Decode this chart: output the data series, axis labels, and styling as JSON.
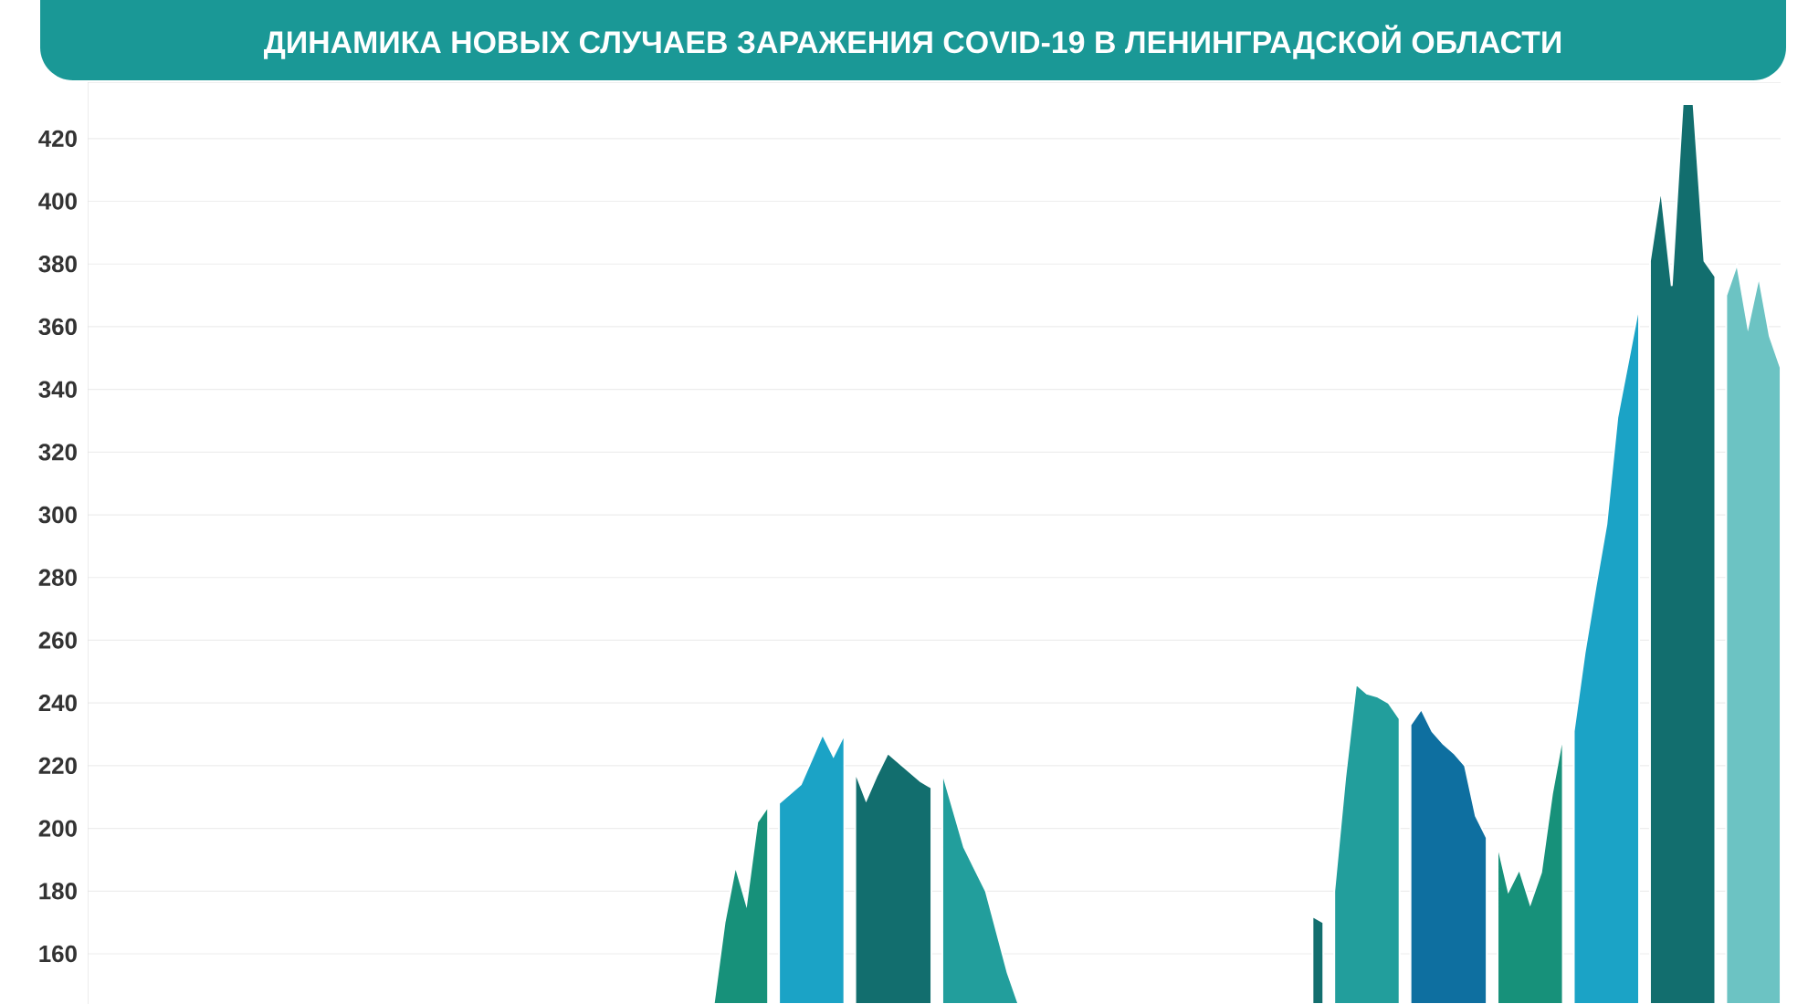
{
  "chart_data": {
    "type": "area",
    "title": "ДИНАМИКА НОВЫХ СЛУЧАЕВ ЗАРАЖЕНИЯ COVID-19 В ЛЕНИНГРАДСКОЙ ОБЛАСТИ",
    "categories": [
      null,
      null,
      null,
      null,
      null,
      null,
      null,
      null,
      null,
      null,
      null,
      null,
      null,
      null,
      null,
      null,
      null,
      null,
      null,
      null,
      null,
      null,
      null,
      null,
      null,
      null,
      null,
      null,
      null,
      null,
      null,
      null,
      null,
      null,
      null,
      null,
      null,
      null,
      null,
      null,
      null,
      null,
      null,
      null,
      null,
      null,
      null,
      null,
      null,
      null,
      null,
      null,
      null,
      null,
      null,
      null,
      null,
      null,
      null,
      null,
      null,
      null,
      null,
      null,
      null,
      null,
      null,
      null,
      null,
      null,
      null,
      null,
      null,
      null,
      null,
      null,
      null,
      null,
      null,
      null,
      null,
      null,
      null,
      null,
      null,
      null,
      null,
      null,
      null,
      null,
      null,
      null,
      null,
      null,
      null,
      null,
      null,
      null,
      null,
      null,
      null,
      null,
      null,
      null,
      null,
      null,
      null,
      null,
      null,
      null,
      null,
      null,
      null,
      null,
      null,
      null,
      null,
      null,
      null,
      null,
      null,
      null,
      null,
      null,
      null,
      null,
      null,
      null,
      null,
      null,
      null,
      null,
      null,
      null,
      null,
      null,
      null,
      null,
      null,
      null,
      null,
      null,
      null,
      null,
      null,
      null,
      null,
      null,
      null,
      null,
      null,
      null,
      null,
      null,
      null,
      null
    ],
    "ylim": [
      144,
      438
    ],
    "yticks": [
      160,
      180,
      200,
      220,
      240,
      260,
      280,
      300,
      320,
      340,
      360,
      380,
      400,
      420
    ],
    "tick_labels": "y",
    "grid": "y",
    "series": [
      {
        "color": "#17917a",
        "values": [
          null,
          null,
          null,
          null,
          null,
          null,
          null,
          null,
          null,
          null,
          null,
          null,
          null,
          null,
          null,
          null,
          null,
          null,
          null,
          null,
          null,
          null,
          null,
          null,
          null,
          null,
          null,
          null,
          null,
          null,
          null,
          null,
          null,
          null,
          null,
          null,
          null,
          null,
          null,
          null,
          null,
          null,
          null,
          null,
          null,
          null,
          null,
          null,
          null,
          null,
          null,
          null,
          null,
          null,
          null,
          null,
          null,
          144,
          170,
          188,
          176,
          202,
          207,
          null,
          null,
          null,
          null,
          null,
          null,
          null,
          null,
          null,
          null,
          null,
          null,
          null,
          null,
          null,
          null,
          null,
          null,
          null,
          null,
          null,
          null,
          null,
          null,
          null,
          null,
          null,
          null,
          null,
          null,
          null,
          null,
          null,
          null,
          null,
          null,
          null,
          null,
          null,
          null,
          null,
          null,
          null,
          null,
          null,
          null,
          null,
          null,
          null,
          null,
          null,
          null,
          null,
          null,
          null,
          null,
          null,
          null,
          null,
          null,
          null,
          null,
          null,
          null,
          null,
          null,
          null,
          null,
          null,
          null,
          null,
          null,
          null,
          null,
          null,
          null,
          null,
          null,
          null,
          null,
          null,
          null,
          null,
          null,
          null,
          null,
          null,
          null,
          null,
          null,
          null,
          null,
          null
        ]
      },
      {
        "color": "#1ba3c6",
        "values": [
          null,
          null,
          null,
          null,
          null,
          null,
          null,
          null,
          null,
          null,
          null,
          null,
          null,
          null,
          null,
          null,
          null,
          null,
          null,
          null,
          null,
          null,
          null,
          null,
          null,
          null,
          null,
          null,
          null,
          null,
          null,
          null,
          null,
          null,
          null,
          null,
          null,
          null,
          null,
          null,
          null,
          null,
          null,
          null,
          null,
          null,
          null,
          null,
          null,
          null,
          null,
          null,
          null,
          null,
          null,
          null,
          null,
          null,
          null,
          null,
          null,
          null,
          null,
          208,
          211,
          214,
          222,
          230,
          223,
          230,
          null,
          null,
          null,
          null,
          null,
          null,
          null,
          null,
          null,
          null,
          null,
          null,
          null,
          null,
          null,
          null,
          null,
          null,
          null,
          null,
          null,
          null,
          null,
          null,
          null,
          null,
          null,
          null,
          null,
          null,
          null,
          null,
          null,
          null,
          null,
          null,
          null,
          null,
          null,
          null,
          null,
          null,
          null,
          null,
          null,
          null,
          null,
          null,
          null,
          null,
          null,
          null,
          null,
          null,
          null,
          null,
          null,
          null,
          null,
          null,
          null,
          null,
          null,
          null,
          null,
          null,
          null,
          null,
          null,
          null,
          null,
          null,
          null,
          null,
          null,
          null,
          null,
          null,
          null,
          null,
          null,
          null,
          null,
          null,
          null,
          null
        ]
      },
      {
        "color": "#126e6e",
        "values": [
          null,
          null,
          null,
          null,
          null,
          null,
          null,
          null,
          null,
          null,
          null,
          null,
          null,
          null,
          null,
          null,
          null,
          null,
          null,
          null,
          null,
          null,
          null,
          null,
          null,
          null,
          null,
          null,
          null,
          null,
          null,
          null,
          null,
          null,
          null,
          null,
          null,
          null,
          null,
          null,
          null,
          null,
          null,
          null,
          null,
          null,
          null,
          null,
          null,
          null,
          null,
          null,
          null,
          null,
          null,
          null,
          null,
          null,
          null,
          null,
          null,
          null,
          null,
          null,
          null,
          null,
          null,
          null,
          null,
          null,
          218,
          209,
          217,
          224,
          221,
          218,
          215,
          213,
          null,
          null,
          null,
          null,
          null,
          null,
          null,
          null,
          null,
          null,
          null,
          null,
          null,
          null,
          null,
          null,
          null,
          null,
          null,
          null,
          null,
          null,
          null,
          null,
          null,
          null,
          null,
          null,
          null,
          null,
          null,
          null,
          null,
          null,
          null,
          null,
          null,
          null,
          null,
          null,
          null,
          null,
          null,
          null,
          null,
          null,
          null,
          null,
          null,
          null,
          null,
          null,
          null,
          null,
          null,
          null,
          null,
          null,
          null,
          null,
          null,
          null,
          null,
          null,
          null,
          null,
          null,
          null,
          null,
          null,
          null,
          null,
          null,
          null,
          null,
          null,
          null,
          null
        ]
      },
      {
        "color": "#229e9c",
        "values": [
          null,
          null,
          null,
          null,
          null,
          null,
          null,
          null,
          null,
          null,
          null,
          null,
          null,
          null,
          null,
          null,
          null,
          null,
          null,
          null,
          null,
          null,
          null,
          null,
          null,
          null,
          null,
          null,
          null,
          null,
          null,
          null,
          null,
          null,
          null,
          null,
          null,
          null,
          null,
          null,
          null,
          null,
          null,
          null,
          null,
          null,
          null,
          null,
          null,
          null,
          null,
          null,
          null,
          null,
          null,
          null,
          null,
          null,
          null,
          null,
          null,
          null,
          null,
          null,
          null,
          null,
          null,
          null,
          null,
          null,
          null,
          null,
          null,
          null,
          null,
          null,
          null,
          null,
          218,
          206,
          194,
          187,
          180,
          167,
          154,
          144,
          null,
          null,
          null,
          null,
          null,
          null,
          null,
          null,
          null,
          null,
          null,
          null,
          null,
          null,
          null,
          null,
          null,
          null,
          null,
          null,
          null,
          null,
          null,
          null,
          null,
          null,
          null,
          null,
          null,
          null,
          null,
          null,
          null,
          null,
          null,
          null,
          null,
          null,
          null,
          null,
          null,
          null,
          null,
          null,
          null,
          null,
          null,
          null,
          null,
          null,
          null,
          null,
          null,
          null,
          null,
          null,
          null,
          null,
          null,
          null,
          null,
          null,
          null,
          null,
          null,
          null,
          null,
          null,
          null,
          null
        ]
      },
      {
        "color": "#126e6e",
        "values": [
          null,
          null,
          null,
          null,
          null,
          null,
          null,
          null,
          null,
          null,
          null,
          null,
          null,
          null,
          null,
          null,
          null,
          null,
          null,
          null,
          null,
          null,
          null,
          null,
          null,
          null,
          null,
          null,
          null,
          null,
          null,
          null,
          null,
          null,
          null,
          null,
          null,
          null,
          null,
          null,
          null,
          null,
          null,
          null,
          null,
          null,
          null,
          null,
          null,
          null,
          null,
          null,
          null,
          null,
          null,
          null,
          null,
          null,
          null,
          null,
          null,
          null,
          null,
          null,
          null,
          null,
          null,
          null,
          null,
          null,
          null,
          null,
          null,
          null,
          null,
          null,
          null,
          null,
          null,
          null,
          null,
          null,
          null,
          null,
          null,
          null,
          null,
          null,
          null,
          null,
          null,
          null,
          null,
          null,
          null,
          null,
          null,
          null,
          null,
          null,
          null,
          null,
          null,
          null,
          null,
          null,
          null,
          null,
          null,
          null,
          null,
          null,
          172,
          170,
          null,
          null,
          null,
          null,
          null,
          null,
          null,
          null,
          null,
          null,
          null,
          null,
          null,
          null,
          null,
          null,
          null,
          null,
          null,
          null,
          null,
          null,
          null,
          null,
          null,
          null,
          null,
          null,
          null,
          null,
          null,
          null,
          null,
          null,
          null,
          null,
          null,
          null,
          null,
          null,
          null,
          null
        ]
      },
      {
        "color": "#229e9c",
        "values": [
          null,
          null,
          null,
          null,
          null,
          null,
          null,
          null,
          null,
          null,
          null,
          null,
          null,
          null,
          null,
          null,
          null,
          null,
          null,
          null,
          null,
          null,
          null,
          null,
          null,
          null,
          null,
          null,
          null,
          null,
          null,
          null,
          null,
          null,
          null,
          null,
          null,
          null,
          null,
          null,
          null,
          null,
          null,
          null,
          null,
          null,
          null,
          null,
          null,
          null,
          null,
          null,
          null,
          null,
          null,
          null,
          null,
          null,
          null,
          null,
          null,
          null,
          null,
          null,
          null,
          null,
          null,
          null,
          null,
          null,
          null,
          null,
          null,
          null,
          null,
          null,
          null,
          null,
          null,
          null,
          null,
          null,
          null,
          null,
          null,
          null,
          null,
          null,
          null,
          null,
          null,
          null,
          null,
          null,
          null,
          null,
          null,
          null,
          null,
          null,
          null,
          null,
          null,
          null,
          null,
          null,
          null,
          null,
          null,
          null,
          null,
          null,
          null,
          null,
          180,
          216,
          246,
          243,
          242,
          240,
          235,
          null,
          null,
          null,
          null,
          null,
          null,
          null,
          null,
          null,
          null,
          null,
          null,
          null,
          null,
          null,
          null,
          null,
          null,
          null,
          null,
          null,
          null,
          null,
          null,
          null,
          null,
          null,
          null,
          null,
          null,
          null,
          null,
          null,
          null,
          null
        ]
      },
      {
        "color": "#0e6fa0",
        "values": [
          null,
          null,
          null,
          null,
          null,
          null,
          null,
          null,
          null,
          null,
          null,
          null,
          null,
          null,
          null,
          null,
          null,
          null,
          null,
          null,
          null,
          null,
          null,
          null,
          null,
          null,
          null,
          null,
          null,
          null,
          null,
          null,
          null,
          null,
          null,
          null,
          null,
          null,
          null,
          null,
          null,
          null,
          null,
          null,
          null,
          null,
          null,
          null,
          null,
          null,
          null,
          null,
          null,
          null,
          null,
          null,
          null,
          null,
          null,
          null,
          null,
          null,
          null,
          null,
          null,
          null,
          null,
          null,
          null,
          null,
          null,
          null,
          null,
          null,
          null,
          null,
          null,
          null,
          null,
          null,
          null,
          null,
          null,
          null,
          null,
          null,
          null,
          null,
          null,
          null,
          null,
          null,
          null,
          null,
          null,
          null,
          null,
          null,
          null,
          null,
          null,
          null,
          null,
          null,
          null,
          null,
          null,
          null,
          null,
          null,
          null,
          null,
          null,
          null,
          null,
          null,
          null,
          null,
          null,
          null,
          null,
          233,
          238,
          231,
          227,
          224,
          220,
          204,
          197,
          null,
          null,
          null,
          null,
          null,
          null,
          null,
          null,
          null,
          null,
          null,
          null,
          null,
          null,
          null,
          null,
          null,
          null,
          null,
          null,
          null,
          null,
          null,
          null,
          null,
          null,
          null
        ]
      },
      {
        "color": "#17917a",
        "values": [
          null,
          null,
          null,
          null,
          null,
          null,
          null,
          null,
          null,
          null,
          null,
          null,
          null,
          null,
          null,
          null,
          null,
          null,
          null,
          null,
          null,
          null,
          null,
          null,
          null,
          null,
          null,
          null,
          null,
          null,
          null,
          null,
          null,
          null,
          null,
          null,
          null,
          null,
          null,
          null,
          null,
          null,
          null,
          null,
          null,
          null,
          null,
          null,
          null,
          null,
          null,
          null,
          null,
          null,
          null,
          null,
          null,
          null,
          null,
          null,
          null,
          null,
          null,
          null,
          null,
          null,
          null,
          null,
          null,
          null,
          null,
          null,
          null,
          null,
          null,
          null,
          null,
          null,
          null,
          null,
          null,
          null,
          null,
          null,
          null,
          null,
          null,
          null,
          null,
          null,
          null,
          null,
          null,
          null,
          null,
          null,
          null,
          null,
          null,
          null,
          null,
          null,
          null,
          null,
          null,
          null,
          null,
          null,
          null,
          null,
          null,
          null,
          null,
          null,
          null,
          null,
          null,
          null,
          null,
          null,
          null,
          null,
          null,
          null,
          null,
          null,
          null,
          null,
          null,
          195,
          180,
          187,
          176,
          186,
          211,
          230,
          null,
          null,
          null,
          null,
          null,
          null,
          null,
          null,
          null,
          null,
          null,
          null,
          null,
          null,
          null,
          null,
          null,
          null,
          null,
          null
        ]
      },
      {
        "color": "#1ba3c6",
        "values": [
          null,
          null,
          null,
          null,
          null,
          null,
          null,
          null,
          null,
          null,
          null,
          null,
          null,
          null,
          null,
          null,
          null,
          null,
          null,
          null,
          null,
          null,
          null,
          null,
          null,
          null,
          null,
          null,
          null,
          null,
          null,
          null,
          null,
          null,
          null,
          null,
          null,
          null,
          null,
          null,
          null,
          null,
          null,
          null,
          null,
          null,
          null,
          null,
          null,
          null,
          null,
          null,
          null,
          null,
          null,
          null,
          null,
          null,
          null,
          null,
          null,
          null,
          null,
          null,
          null,
          null,
          null,
          null,
          null,
          null,
          null,
          null,
          null,
          null,
          null,
          null,
          null,
          null,
          null,
          null,
          null,
          null,
          null,
          null,
          null,
          null,
          null,
          null,
          null,
          null,
          null,
          null,
          null,
          null,
          null,
          null,
          null,
          null,
          null,
          null,
          null,
          null,
          null,
          null,
          null,
          null,
          null,
          null,
          null,
          null,
          null,
          null,
          null,
          null,
          null,
          null,
          null,
          null,
          null,
          null,
          null,
          null,
          null,
          null,
          null,
          null,
          null,
          null,
          null,
          null,
          null,
          null,
          null,
          null,
          null,
          null,
          231,
          256,
          277,
          297,
          331,
          349,
          367,
          null,
          null,
          null,
          null,
          null,
          null,
          null,
          null,
          null,
          null,
          null,
          null,
          null
        ]
      },
      {
        "color": "#126e6e",
        "values": [
          null,
          null,
          null,
          null,
          null,
          null,
          null,
          null,
          null,
          null,
          null,
          null,
          null,
          null,
          null,
          null,
          null,
          null,
          null,
          null,
          null,
          null,
          null,
          null,
          null,
          null,
          null,
          null,
          null,
          null,
          null,
          null,
          null,
          null,
          null,
          null,
          null,
          null,
          null,
          null,
          null,
          null,
          null,
          null,
          null,
          null,
          null,
          null,
          null,
          null,
          null,
          null,
          null,
          null,
          null,
          null,
          null,
          null,
          null,
          null,
          null,
          null,
          null,
          null,
          null,
          null,
          null,
          null,
          null,
          null,
          null,
          null,
          null,
          null,
          null,
          null,
          null,
          null,
          null,
          null,
          null,
          null,
          null,
          null,
          null,
          null,
          null,
          null,
          null,
          null,
          null,
          null,
          null,
          null,
          null,
          null,
          null,
          null,
          null,
          null,
          null,
          null,
          null,
          null,
          null,
          null,
          null,
          null,
          null,
          null,
          null,
          null,
          null,
          null,
          null,
          null,
          null,
          null,
          null,
          null,
          null,
          null,
          null,
          null,
          null,
          null,
          null,
          null,
          null,
          null,
          null,
          null,
          null,
          null,
          null,
          null,
          null,
          null,
          null,
          null,
          null,
          null,
          null,
          381,
          404,
          373,
          431,
          431,
          381,
          376,
          null,
          null,
          null,
          null,
          null,
          null
        ]
      },
      {
        "color": "#6cc3c3",
        "values": [
          null,
          null,
          null,
          null,
          null,
          null,
          null,
          null,
          null,
          null,
          null,
          null,
          null,
          null,
          null,
          null,
          null,
          null,
          null,
          null,
          null,
          null,
          null,
          null,
          null,
          null,
          null,
          null,
          null,
          null,
          null,
          null,
          null,
          null,
          null,
          null,
          null,
          null,
          null,
          null,
          null,
          null,
          null,
          null,
          null,
          null,
          null,
          null,
          null,
          null,
          null,
          null,
          null,
          null,
          null,
          null,
          null,
          null,
          null,
          null,
          null,
          null,
          null,
          null,
          null,
          null,
          null,
          null,
          null,
          null,
          null,
          null,
          null,
          null,
          null,
          null,
          null,
          null,
          null,
          null,
          null,
          null,
          null,
          null,
          null,
          null,
          null,
          null,
          null,
          null,
          null,
          null,
          null,
          null,
          null,
          null,
          null,
          null,
          null,
          null,
          null,
          null,
          null,
          null,
          null,
          null,
          null,
          null,
          null,
          null,
          null,
          null,
          null,
          null,
          null,
          null,
          null,
          null,
          null,
          null,
          null,
          null,
          null,
          null,
          null,
          null,
          null,
          null,
          null,
          null,
          null,
          null,
          null,
          null,
          null,
          null,
          null,
          null,
          null,
          null,
          null,
          null,
          null,
          null,
          null,
          null,
          null,
          null,
          null,
          null,
          370,
          380,
          360,
          376,
          357,
          347
        ]
      }
    ]
  }
}
